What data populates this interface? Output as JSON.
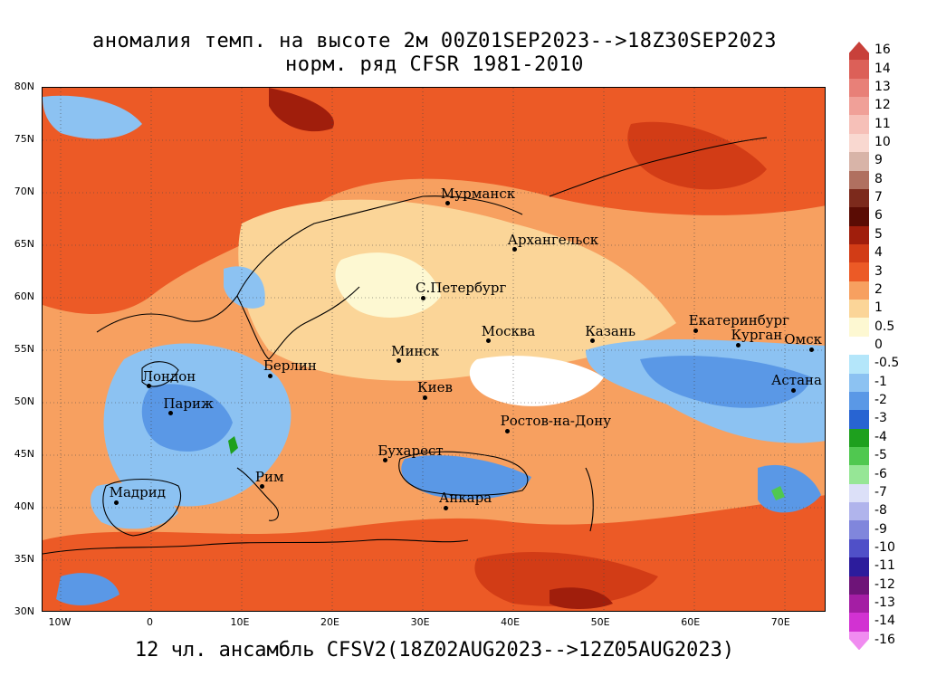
{
  "title_line1": "аномалия темп. на высоте 2м 00Z01SEP2023-->18Z30SEP2023",
  "title_line2": "норм. ряд CFSR 1981-2010",
  "footer": "12 чл. ансамбль CFSV2(18Z02AUG2023-->12Z05AUG2023)",
  "lat_labels": [
    "80N",
    "75N",
    "70N",
    "65N",
    "60N",
    "55N",
    "50N",
    "45N",
    "40N",
    "35N",
    "30N"
  ],
  "lon_labels": [
    "10W",
    "0",
    "10E",
    "20E",
    "30E",
    "40E",
    "50E",
    "60E",
    "70E"
  ],
  "cities": [
    {
      "name": "Мурманск",
      "lon": 33.1,
      "lat": 68.9
    },
    {
      "name": "Архангельск",
      "lon": 40.5,
      "lat": 64.5
    },
    {
      "name": "С.Петербург",
      "lon": 30.3,
      "lat": 59.9
    },
    {
      "name": "Москва",
      "lon": 37.6,
      "lat": 55.8
    },
    {
      "name": "Казань",
      "lon": 49.1,
      "lat": 55.8
    },
    {
      "name": "Екатеринбург",
      "lon": 60.6,
      "lat": 56.8
    },
    {
      "name": "Курган",
      "lon": 65.3,
      "lat": 55.4
    },
    {
      "name": "Омск",
      "lon": 73.4,
      "lat": 55.0
    },
    {
      "name": "Астана",
      "lon": 71.4,
      "lat": 51.1
    },
    {
      "name": "Минск",
      "lon": 27.6,
      "lat": 53.9
    },
    {
      "name": "Берлин",
      "lon": 13.4,
      "lat": 52.5
    },
    {
      "name": "Лондон",
      "lon": -0.1,
      "lat": 51.5
    },
    {
      "name": "Париж",
      "lon": 2.3,
      "lat": 48.9
    },
    {
      "name": "Киев",
      "lon": 30.5,
      "lat": 50.4
    },
    {
      "name": "Ростов-на-Дону",
      "lon": 39.7,
      "lat": 47.2
    },
    {
      "name": "Бухарест",
      "lon": 26.1,
      "lat": 44.4
    },
    {
      "name": "Рим",
      "lon": 12.5,
      "lat": 41.9
    },
    {
      "name": "Мадрид",
      "lon": -3.7,
      "lat": 40.4
    },
    {
      "name": "Анкара",
      "lon": 32.9,
      "lat": 39.9
    }
  ],
  "legend": [
    {
      "label": "16",
      "color": "#c8403a"
    },
    {
      "label": "14",
      "color": "#dc6058"
    },
    {
      "label": "13",
      "color": "#e88078"
    },
    {
      "label": "12",
      "color": "#f0a098"
    },
    {
      "label": "11",
      "color": "#f6c0b8"
    },
    {
      "label": "10",
      "color": "#f9d8d0"
    },
    {
      "label": "9",
      "color": "#d8b4a8"
    },
    {
      "label": "8",
      "color": "#b07060"
    },
    {
      "label": "7",
      "color": "#7c2a1c"
    },
    {
      "label": "6",
      "color": "#5a0c04"
    },
    {
      "label": "5",
      "color": "#a01e0c"
    },
    {
      "label": "4",
      "color": "#d23c16"
    },
    {
      "label": "3",
      "color": "#ec5a26"
    },
    {
      "label": "2",
      "color": "#f7a060"
    },
    {
      "label": "1",
      "color": "#fbd598"
    },
    {
      "label": "0.5",
      "color": "#fdf8d2"
    },
    {
      "label": "0",
      "color": "#ffffff"
    },
    {
      "label": "-0.5",
      "color": "#b4e6fa"
    },
    {
      "label": "-1",
      "color": "#8cc2f2"
    },
    {
      "label": "-2",
      "color": "#5a98e6"
    },
    {
      "label": "-3",
      "color": "#2864d2"
    },
    {
      "label": "-4",
      "color": "#1ea01e"
    },
    {
      "label": "-5",
      "color": "#50c850"
    },
    {
      "label": "-6",
      "color": "#96e696"
    },
    {
      "label": "-7",
      "color": "#dce0f8"
    },
    {
      "label": "-8",
      "color": "#b0b4ec"
    },
    {
      "label": "-9",
      "color": "#8086dc"
    },
    {
      "label": "-10",
      "color": "#5050c8"
    },
    {
      "label": "-11",
      "color": "#2c1c9c"
    },
    {
      "label": "-12",
      "color": "#6e1478"
    },
    {
      "label": "-13",
      "color": "#a41ea4"
    },
    {
      "label": "-14",
      "color": "#d232d2"
    },
    {
      "label": "-16",
      "color": "#f08cf0"
    }
  ]
}
